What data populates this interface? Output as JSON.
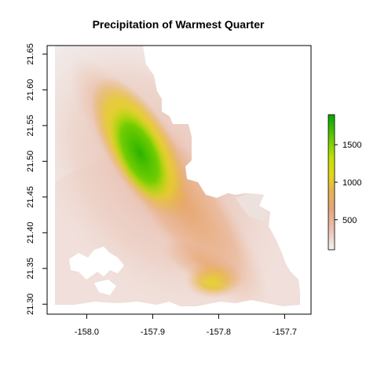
{
  "title": "Precipitation of Warmest Quarter",
  "map": {
    "type": "raster",
    "x_ticks": [
      {
        "value": -158.0,
        "label": "-158.0"
      },
      {
        "value": -157.9,
        "label": "-157.9"
      },
      {
        "value": -157.8,
        "label": "-157.8"
      },
      {
        "value": -157.7,
        "label": "-157.7"
      }
    ],
    "y_ticks": [
      {
        "value": 21.3,
        "label": "21.30"
      },
      {
        "value": 21.35,
        "label": "21.35"
      },
      {
        "value": 21.4,
        "label": "21.40"
      },
      {
        "value": 21.45,
        "label": "21.45"
      },
      {
        "value": 21.5,
        "label": "21.50"
      },
      {
        "value": 21.55,
        "label": "21.55"
      },
      {
        "value": 21.6,
        "label": "21.60"
      },
      {
        "value": 21.65,
        "label": "21.65"
      }
    ],
    "xlim": [
      -158.06,
      -157.66
    ],
    "ylim": [
      21.286,
      21.662
    ],
    "legend": {
      "placement": "right",
      "range": [
        100,
        1900
      ],
      "ticks": [
        {
          "value": 500,
          "label": "500"
        },
        {
          "value": 1000,
          "label": "1000"
        },
        {
          "value": 1500,
          "label": "1500"
        }
      ],
      "colors": [
        "#f2f2f2",
        "#ecb9a8",
        "#e4a060",
        "#e8c43c",
        "#dfe600",
        "#7bd400",
        "#2ab800",
        "#00a600"
      ]
    },
    "hotspots": [
      {
        "lon": -157.92,
        "lat": 21.51,
        "value": 1800
      },
      {
        "lon": -157.8,
        "lat": 21.335,
        "value": 1000
      }
    ]
  }
}
